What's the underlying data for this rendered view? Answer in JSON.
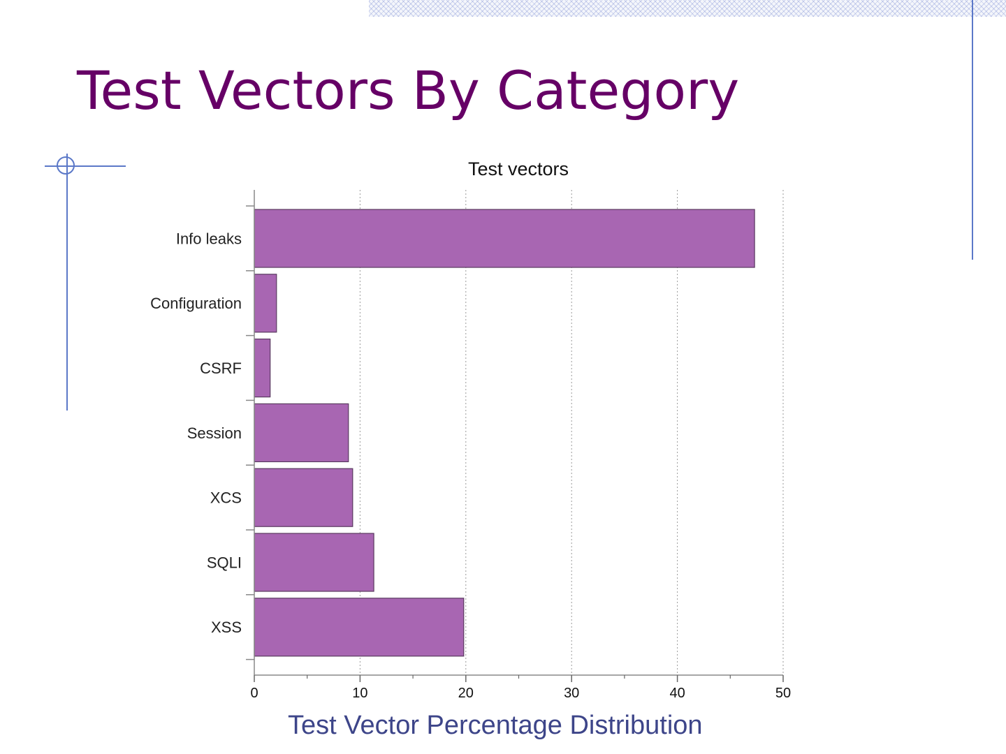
{
  "slide": {
    "title": "Test Vectors By Category",
    "caption": "Test Vector Percentage Distribution"
  },
  "colors": {
    "title": "#660066",
    "caption": "#3d4589",
    "accent_rule": "#5b78c8",
    "bar_fill": "#a866b2",
    "bar_stroke": "#5a3a60"
  },
  "chart_data": {
    "type": "bar",
    "orientation": "horizontal",
    "title": "Test vectors",
    "xlabel": "",
    "ylabel": "",
    "categories": [
      "Info leaks",
      "Configuration",
      "CSRF",
      "Session",
      "XCS",
      "SQLI",
      "XSS"
    ],
    "values": [
      47.3,
      2.1,
      1.5,
      8.9,
      9.3,
      11.3,
      19.8
    ],
    "xlim": [
      0,
      50
    ],
    "x_ticks": [
      0,
      10,
      20,
      30,
      40,
      50
    ],
    "grid": "vertical dotted",
    "legend": "none"
  }
}
